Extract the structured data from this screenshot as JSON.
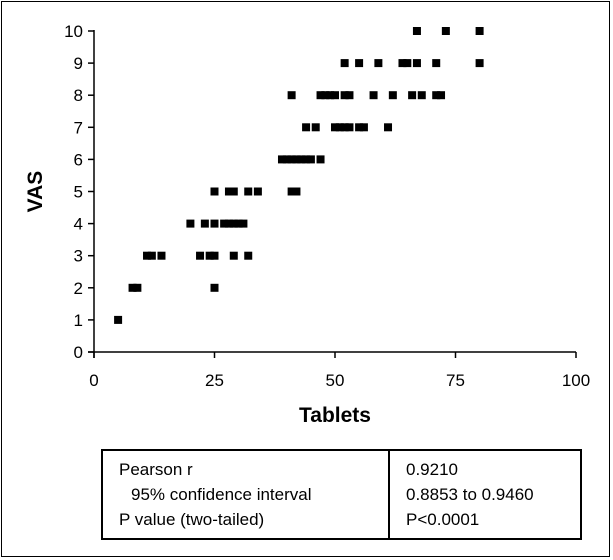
{
  "chart_data": {
    "type": "scatter",
    "title": "",
    "xlabel": "Tablets",
    "ylabel": "VAS",
    "xlim": [
      0,
      100
    ],
    "ylim": [
      0,
      10
    ],
    "x_ticks": [
      "0",
      "25",
      "50",
      "75",
      "100"
    ],
    "y_ticks": [
      "0",
      "1",
      "2",
      "3",
      "4",
      "5",
      "6",
      "7",
      "8",
      "9",
      "10"
    ],
    "grid": false,
    "marker": "square",
    "color": "#000000",
    "points": [
      [
        5,
        1
      ],
      [
        8,
        2
      ],
      [
        9,
        2
      ],
      [
        25,
        2
      ],
      [
        11,
        3
      ],
      [
        12,
        3
      ],
      [
        14,
        3
      ],
      [
        22,
        3
      ],
      [
        24,
        3
      ],
      [
        25,
        3
      ],
      [
        29,
        3
      ],
      [
        32,
        3
      ],
      [
        20,
        4
      ],
      [
        23,
        4
      ],
      [
        25,
        4
      ],
      [
        27,
        4
      ],
      [
        28,
        4
      ],
      [
        29,
        4
      ],
      [
        30,
        4
      ],
      [
        31,
        4
      ],
      [
        25,
        5
      ],
      [
        28,
        5
      ],
      [
        29,
        5
      ],
      [
        32,
        5
      ],
      [
        34,
        5
      ],
      [
        41,
        5
      ],
      [
        42,
        5
      ],
      [
        39,
        6
      ],
      [
        40,
        6
      ],
      [
        41,
        6
      ],
      [
        42,
        6
      ],
      [
        43,
        6
      ],
      [
        44,
        6
      ],
      [
        45,
        6
      ],
      [
        47,
        6
      ],
      [
        44,
        7
      ],
      [
        46,
        7
      ],
      [
        50,
        7
      ],
      [
        51,
        7
      ],
      [
        52,
        7
      ],
      [
        53,
        7
      ],
      [
        55,
        7
      ],
      [
        56,
        7
      ],
      [
        61,
        7
      ],
      [
        41,
        8
      ],
      [
        47,
        8
      ],
      [
        48,
        8
      ],
      [
        49,
        8
      ],
      [
        50,
        8
      ],
      [
        52,
        8
      ],
      [
        53,
        8
      ],
      [
        58,
        8
      ],
      [
        62,
        8
      ],
      [
        66,
        8
      ],
      [
        68,
        8
      ],
      [
        71,
        8
      ],
      [
        72,
        8
      ],
      [
        52,
        9
      ],
      [
        55,
        9
      ],
      [
        59,
        9
      ],
      [
        64,
        9
      ],
      [
        65,
        9
      ],
      [
        67,
        9
      ],
      [
        71,
        9
      ],
      [
        80,
        9
      ],
      [
        67,
        10
      ],
      [
        73,
        10
      ],
      [
        80,
        10
      ]
    ]
  },
  "stats_table": {
    "rows": [
      {
        "label": "Pearson r",
        "value": "0.9210"
      },
      {
        "label": "95% confidence interval",
        "value": "0.8853 to 0.9460"
      },
      {
        "label": "P value (two-tailed)",
        "value": "P<0.0001"
      }
    ]
  }
}
